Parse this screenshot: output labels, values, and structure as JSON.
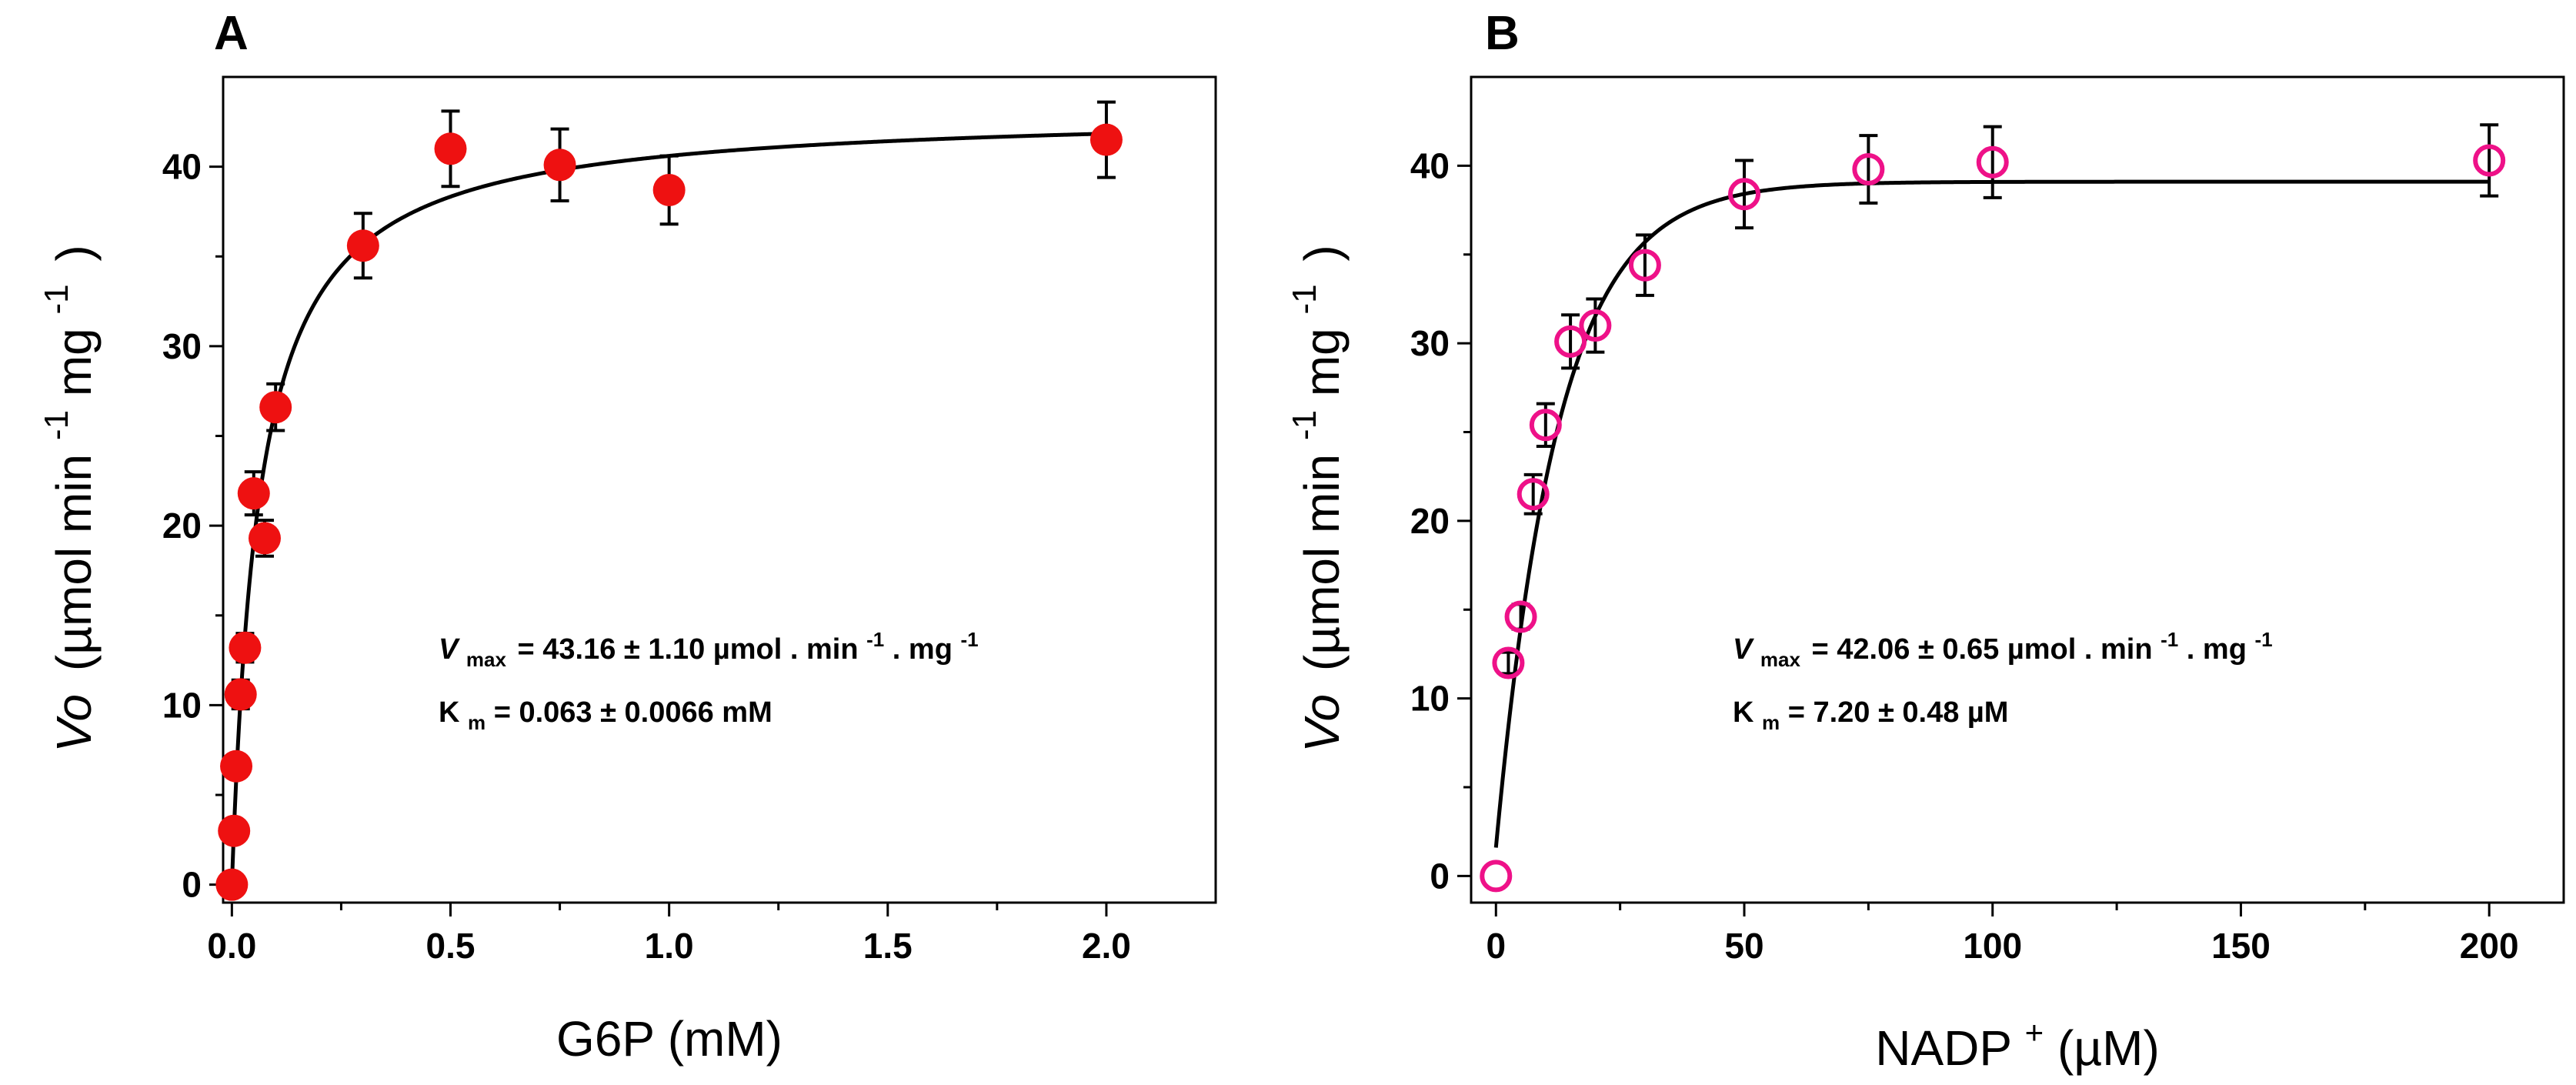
{
  "chart_data": [
    {
      "panel_label": "A",
      "type": "scatter",
      "xlabel": "G6P (mM)",
      "ylabel": {
        "prefix": "Vo",
        "main": "(µmol min",
        "sup1": "-1",
        "mid": " mg",
        "sup2": "-1",
        "end": ")"
      },
      "xlim": [
        -0.02,
        2.25
      ],
      "ylim": [
        -1,
        45
      ],
      "xticks": [
        0.0,
        0.5,
        1.0,
        1.5,
        2.0
      ],
      "xtick_labels": [
        "0.0",
        "0.5",
        "1.0",
        "1.5",
        "2.0"
      ],
      "yticks": [
        0,
        10,
        20,
        30,
        40
      ],
      "ytick_labels": [
        "0",
        "10",
        "20",
        "30",
        "40"
      ],
      "marker": {
        "style": "filled-circle",
        "color": "#ee1111"
      },
      "points": [
        {
          "x": 0.0,
          "y": 0.0,
          "err": 0.0
        },
        {
          "x": 0.005,
          "y": 3.0,
          "err": 0.5
        },
        {
          "x": 0.01,
          "y": 6.6,
          "err": 0.6
        },
        {
          "x": 0.02,
          "y": 10.6,
          "err": 0.8
        },
        {
          "x": 0.03,
          "y": 13.2,
          "err": 0.8
        },
        {
          "x": 0.05,
          "y": 21.8,
          "err": 1.2
        },
        {
          "x": 0.075,
          "y": 19.3,
          "err": 1.0
        },
        {
          "x": 0.1,
          "y": 26.6,
          "err": 1.3
        },
        {
          "x": 0.3,
          "y": 35.6,
          "err": 1.8
        },
        {
          "x": 0.5,
          "y": 41.0,
          "err": 2.1
        },
        {
          "x": 0.75,
          "y": 40.1,
          "err": 2.0
        },
        {
          "x": 1.0,
          "y": 38.7,
          "err": 1.9
        },
        {
          "x": 2.0,
          "y": 41.5,
          "err": 2.1
        }
      ],
      "fit": {
        "model": "michaelis-menten",
        "vmax": 43.16,
        "km": 0.063,
        "x_start": 0.0
      },
      "annotation": {
        "vmax_symbol": "V",
        "vmax_sub": "max",
        "vmax_text": "=  43.16 ± 1.10 µmol . min",
        "vmax_sup": "-1",
        "vmax_text2": " . mg",
        "vmax_sup2": "-1",
        "km_symbol": "K",
        "km_sub": "m",
        "km_text": "= 0.063 ± 0.0066 mM"
      }
    },
    {
      "panel_label": "B",
      "type": "scatter",
      "xlabel": {
        "main": "NADP",
        "sup": "+",
        "end": " (µM)"
      },
      "ylabel": {
        "prefix": "Vo",
        "main": "(µmol min",
        "sup1": "-1",
        "mid": " mg",
        "sup2": "-1",
        "end": ")"
      },
      "xlim": [
        -5,
        215
      ],
      "ylim": [
        -1.5,
        45
      ],
      "xticks": [
        0,
        50,
        100,
        150,
        200
      ],
      "xtick_labels": [
        "0",
        "50",
        "100",
        "150",
        "200"
      ],
      "yticks": [
        0,
        10,
        20,
        30,
        40
      ],
      "ytick_labels": [
        "0",
        "10",
        "20",
        "30",
        "40"
      ],
      "marker": {
        "style": "open-circle",
        "color": "#ee1188"
      },
      "points": [
        {
          "x": 0,
          "y": 0.0,
          "err": 0.0
        },
        {
          "x": 2.5,
          "y": 12.0,
          "err": 0.6
        },
        {
          "x": 5,
          "y": 14.6,
          "err": 0.7
        },
        {
          "x": 7.5,
          "y": 21.5,
          "err": 1.1
        },
        {
          "x": 10,
          "y": 25.4,
          "err": 1.2
        },
        {
          "x": 15,
          "y": 30.1,
          "err": 1.5
        },
        {
          "x": 20,
          "y": 31.0,
          "err": 1.5
        },
        {
          "x": 30,
          "y": 34.4,
          "err": 1.7
        },
        {
          "x": 50,
          "y": 38.4,
          "err": 1.9
        },
        {
          "x": 75,
          "y": 39.8,
          "err": 1.9
        },
        {
          "x": 100,
          "y": 40.2,
          "err": 2.0
        },
        {
          "x": 200,
          "y": 40.3,
          "err": 2.0
        }
      ],
      "fit": {
        "model": "sigmoidal-saturation",
        "top": 39.1,
        "k": 0.08,
        "y0": 1.6,
        "x_start": 0.0
      },
      "annotation": {
        "vmax_symbol": "V",
        "vmax_sub": "max",
        "vmax_text": "= 42.06 ± 0.65 µmol . min",
        "vmax_sup": "-1",
        "vmax_text2": " . mg",
        "vmax_sup2": "-1",
        "km_symbol": "K",
        "km_sub": "m",
        "km_text": "= 7.20 ± 0.48 µM"
      }
    }
  ]
}
